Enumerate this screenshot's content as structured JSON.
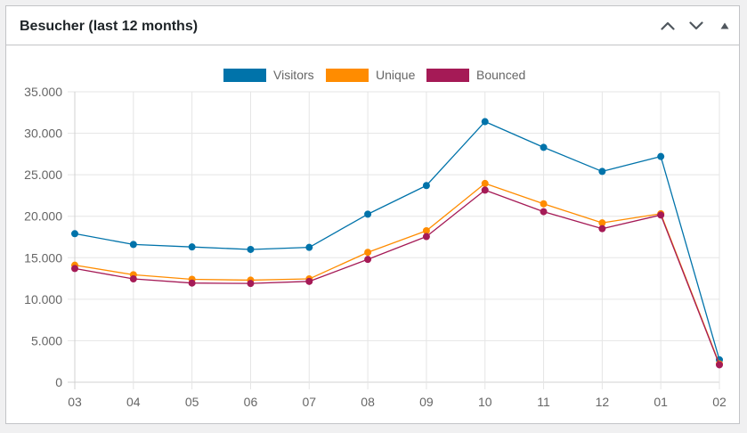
{
  "widget": {
    "title": "Besucher (last 12 months)",
    "controls": {
      "move_up_icon": "chevron-up-icon",
      "move_down_icon": "chevron-down-icon",
      "toggle_icon": "triangle-up-icon"
    }
  },
  "colors": {
    "visitors": "#0073aa",
    "unique": "#ff8c00",
    "bounced": "#a51a56",
    "grid": "#e5e5e5",
    "text": "#666666"
  },
  "chart_data": {
    "type": "line",
    "title": "",
    "xlabel": "",
    "ylabel": "",
    "categories": [
      "03",
      "04",
      "05",
      "06",
      "07",
      "08",
      "09",
      "10",
      "11",
      "12",
      "01",
      "02"
    ],
    "ylim": [
      0,
      35000
    ],
    "yticks": [
      0,
      5000,
      10000,
      15000,
      20000,
      25000,
      30000,
      35000
    ],
    "ytick_labels": [
      "0",
      "5.000",
      "10.000",
      "15.000",
      "20.000",
      "25.000",
      "30.000",
      "35.000"
    ],
    "legend_position": "top-center",
    "grid": true,
    "series": [
      {
        "name": "Visitors",
        "color": "#0073aa",
        "values": [
          17900,
          16600,
          16300,
          16000,
          16250,
          20250,
          23700,
          31400,
          28300,
          25400,
          27200,
          2700
        ]
      },
      {
        "name": "Unique",
        "color": "#ff8c00",
        "values": [
          14100,
          12950,
          12400,
          12300,
          12450,
          15650,
          18250,
          23950,
          21500,
          19200,
          20300,
          2200
        ]
      },
      {
        "name": "Bounced",
        "color": "#a51a56",
        "values": [
          13700,
          12450,
          11950,
          11900,
          12150,
          14800,
          17550,
          23150,
          20550,
          18500,
          20150,
          2100
        ]
      }
    ]
  }
}
